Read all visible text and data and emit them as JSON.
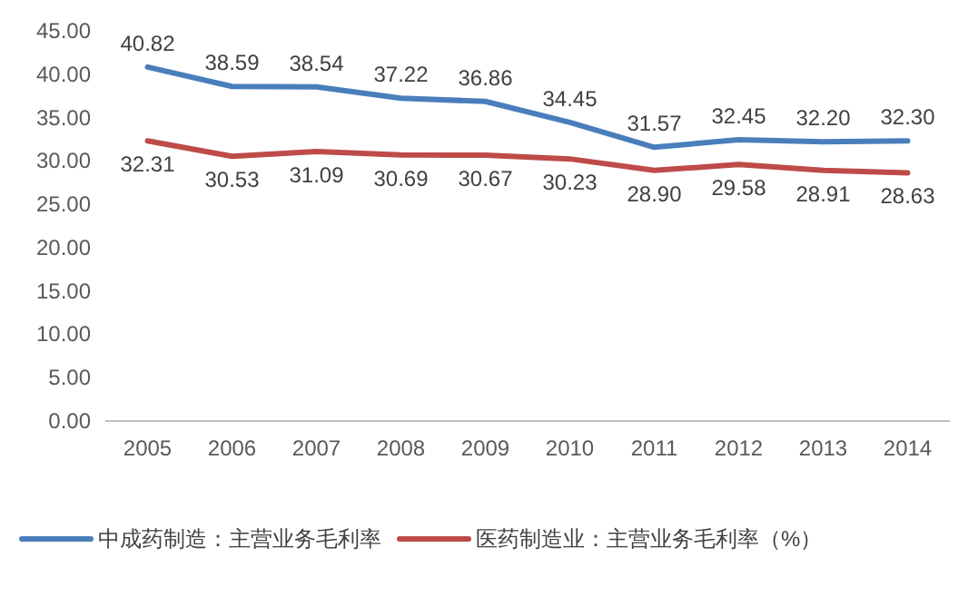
{
  "chart_data": {
    "type": "line",
    "categories": [
      "2005",
      "2006",
      "2007",
      "2008",
      "2009",
      "2010",
      "2011",
      "2012",
      "2013",
      "2014"
    ],
    "series": [
      {
        "name": "中成药制造：主营业务毛利率",
        "color": "#4a7ebb",
        "values": [
          40.82,
          38.59,
          38.54,
          37.22,
          36.86,
          34.45,
          31.57,
          32.45,
          32.2,
          32.3
        ],
        "value_labels": [
          "40.82",
          "38.59",
          "38.54",
          "37.22",
          "36.86",
          "34.45",
          "31.57",
          "32.45",
          "32.20",
          "32.30"
        ]
      },
      {
        "name": "医药制造业：主营业务毛利率（%）",
        "color": "#be4b48",
        "values": [
          32.31,
          30.53,
          31.09,
          30.69,
          30.67,
          30.23,
          28.9,
          29.58,
          28.91,
          28.63
        ],
        "value_labels": [
          "32.31",
          "30.53",
          "31.09",
          "30.69",
          "30.67",
          "30.23",
          "28.90",
          "29.58",
          "28.91",
          "28.63"
        ]
      }
    ],
    "ylim": [
      0,
      45
    ],
    "yticks": [
      {
        "value": 0,
        "label": "0.00"
      },
      {
        "value": 5,
        "label": "5.00"
      },
      {
        "value": 10,
        "label": "10.00"
      },
      {
        "value": 15,
        "label": "15.00"
      },
      {
        "value": 20,
        "label": "20.00"
      },
      {
        "value": 25,
        "label": "25.00"
      },
      {
        "value": 30,
        "label": "30.00"
      },
      {
        "value": 35,
        "label": "35.00"
      },
      {
        "value": 40,
        "label": "40.00"
      },
      {
        "value": 45,
        "label": "45.00"
      }
    ],
    "grid": false,
    "legend": "bottom",
    "marker": "none",
    "line_style": "solid"
  }
}
